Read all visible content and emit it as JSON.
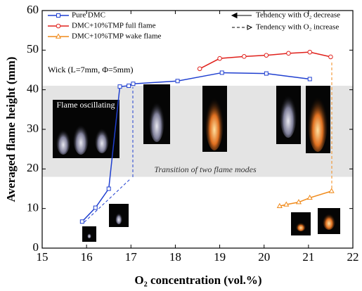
{
  "chart_data": {
    "type": "line",
    "xlabel": "O₂ concentration (vol.%)",
    "ylabel": "Averaged flame height (mm)",
    "xlim": [
      15,
      22
    ],
    "xticks": [
      15,
      16,
      17,
      18,
      19,
      20,
      21,
      22
    ],
    "ylim": [
      0,
      60
    ],
    "yticks": [
      0,
      10,
      20,
      30,
      40,
      50,
      60
    ],
    "band": [
      18,
      41
    ],
    "series": [
      {
        "name": "Pure DMC",
        "color": "#1f3fd0",
        "marker": "square",
        "x": [
          15.9,
          16.2,
          16.5,
          16.75,
          16.95,
          17.05,
          18.05,
          19.05,
          20.05,
          21.03
        ],
        "values": [
          6.7,
          10.2,
          15,
          40.8,
          41,
          41.5,
          42.2,
          44.3,
          44.1,
          42.7
        ]
      },
      {
        "name": "DMC+10%TMP full flame",
        "color": "#e0201b",
        "marker": "circle",
        "x": [
          18.55,
          19.0,
          19.55,
          20.05,
          20.55,
          21.03,
          21.5
        ],
        "values": [
          45.3,
          47.9,
          48.4,
          48.7,
          49.2,
          49.5,
          48.3
        ]
      },
      {
        "name": "DMC+10%TMP wake flame",
        "color": "#f08a1a",
        "marker": "triangle",
        "x": [
          20.35,
          20.5,
          20.78,
          21.03,
          21.52
        ],
        "values": [
          10.6,
          11,
          11.6,
          12.7,
          14.4
        ]
      }
    ],
    "legend_extra": [
      "Tendency with O₂ decrease",
      "Tendency with O₂ increase"
    ],
    "annotations": [
      "Wick (L=7mm, Φ=5mm)",
      "Flame oscillating",
      "Transition of two flame modes"
    ]
  }
}
